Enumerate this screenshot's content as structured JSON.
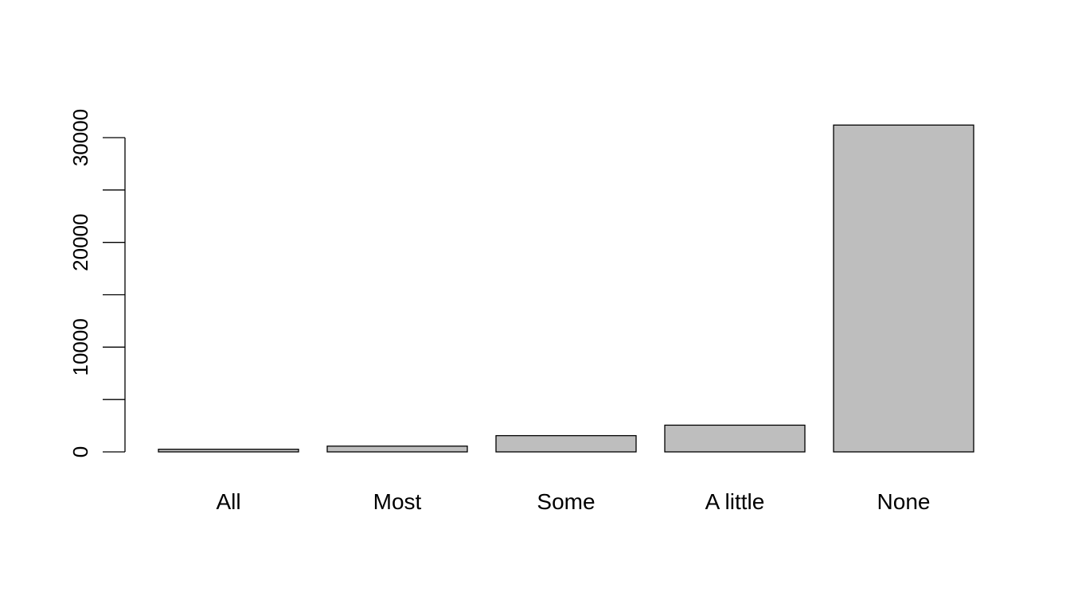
{
  "chart_data": {
    "type": "bar",
    "title": "",
    "xlabel": "",
    "ylabel": "",
    "categories": [
      "All",
      "Most",
      "Some",
      "A little",
      "None"
    ],
    "values": [
      250,
      550,
      1550,
      2550,
      31200
    ],
    "ylim": [
      0,
      30000
    ],
    "yticks": [
      0,
      5000,
      10000,
      15000,
      20000,
      25000,
      30000
    ],
    "ytick_labels": [
      "0",
      "",
      "10000",
      "",
      "20000",
      "",
      "30000"
    ],
    "grid": false,
    "legend": "none",
    "colors": {
      "bar_fill": "#bebebe",
      "bar_stroke": "#000000",
      "background": "#ffffff"
    }
  }
}
